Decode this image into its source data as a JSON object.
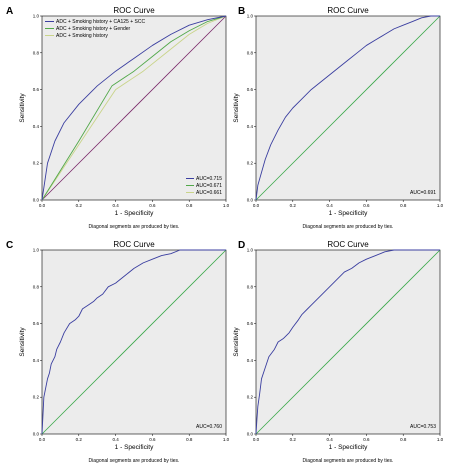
{
  "chart_data": [
    {
      "panel": "A",
      "type": "line",
      "title": "ROC Curve",
      "xlabel": "1 - Specificity",
      "ylabel": "Sensitivity",
      "xlim": [
        0,
        1
      ],
      "ylim": [
        0,
        1
      ],
      "x_ticks": [
        "0.0",
        "0.2",
        "0.4",
        "0.6",
        "0.8",
        "1.0"
      ],
      "y_ticks": [
        "0.0",
        "0.2",
        "0.4",
        "0.6",
        "0.8",
        "1.0"
      ],
      "note": "Diagonal segments are produced by ties.",
      "legend": [
        {
          "label": "ADC + Smoking history + CA125 + SCC",
          "color": "#3b3fa0"
        },
        {
          "label": "ADC + Smoking history + Gender",
          "color": "#52a84a"
        },
        {
          "label": "ADC + Smoking history",
          "color": "#c9d48a"
        }
      ],
      "auc_labels": [
        {
          "text": "AUC=0.715",
          "color": "#3b3fa0"
        },
        {
          "text": "AUC=0.671",
          "color": "#52a84a"
        },
        {
          "text": "AUC=0.661",
          "color": "#c9d48a"
        }
      ],
      "reference_color": "#7a2a6a",
      "series": [
        {
          "color": "#3b3fa0",
          "x": [
            0,
            0.03,
            0.07,
            0.12,
            0.2,
            0.3,
            0.4,
            0.5,
            0.6,
            0.7,
            0.8,
            0.9,
            1.0
          ],
          "y": [
            0,
            0.2,
            0.32,
            0.42,
            0.52,
            0.62,
            0.7,
            0.77,
            0.84,
            0.9,
            0.95,
            0.98,
            1.0
          ]
        },
        {
          "color": "#52a84a",
          "x": [
            0,
            0.2,
            0.38,
            0.5,
            0.6,
            0.7,
            0.8,
            0.9,
            1.0
          ],
          "y": [
            0,
            0.32,
            0.62,
            0.7,
            0.78,
            0.86,
            0.92,
            0.97,
            1.0
          ]
        },
        {
          "color": "#c9d48a",
          "x": [
            0,
            0.2,
            0.4,
            0.55,
            0.7,
            0.8,
            0.9,
            1.0
          ],
          "y": [
            0,
            0.3,
            0.6,
            0.7,
            0.82,
            0.9,
            0.96,
            1.0
          ]
        }
      ]
    },
    {
      "panel": "B",
      "type": "line",
      "title": "ROC Curve",
      "xlabel": "1 - Specificity",
      "ylabel": "Sensitivity",
      "xlim": [
        0,
        1
      ],
      "ylim": [
        0,
        1
      ],
      "x_ticks": [
        "0.0",
        "0.2",
        "0.4",
        "0.6",
        "0.8",
        "1.0"
      ],
      "y_ticks": [
        "0.0",
        "0.2",
        "0.4",
        "0.6",
        "0.8",
        "1.0"
      ],
      "note": "Diagonal segments are produced by ties.",
      "auc_labels": [
        {
          "text": "AUC=0.691",
          "color": "#000000"
        }
      ],
      "reference_color": "#3aa84a",
      "series": [
        {
          "color": "#3b3fa0",
          "x": [
            0,
            0.01,
            0.03,
            0.05,
            0.08,
            0.12,
            0.16,
            0.2,
            0.25,
            0.3,
            0.35,
            0.4,
            0.45,
            0.5,
            0.55,
            0.6,
            0.65,
            0.7,
            0.75,
            0.8,
            0.85,
            0.9,
            0.95,
            1.0
          ],
          "y": [
            0,
            0.08,
            0.15,
            0.22,
            0.3,
            0.38,
            0.45,
            0.5,
            0.55,
            0.6,
            0.64,
            0.68,
            0.72,
            0.76,
            0.8,
            0.84,
            0.87,
            0.9,
            0.93,
            0.95,
            0.97,
            0.99,
            1.0,
            1.0
          ]
        }
      ]
    },
    {
      "panel": "C",
      "type": "line",
      "title": "ROC Curve",
      "xlabel": "1 - Specificity",
      "ylabel": "Sensitivity",
      "xlim": [
        0,
        1
      ],
      "ylim": [
        0,
        1
      ],
      "x_ticks": [
        "0.0",
        "0.2",
        "0.4",
        "0.6",
        "0.8",
        "1.0"
      ],
      "y_ticks": [
        "0.0",
        "0.2",
        "0.4",
        "0.6",
        "0.8",
        "1.0"
      ],
      "note": "Diagonal segments are produced by ties.",
      "auc_labels": [
        {
          "text": "AUC=0.760",
          "color": "#000000"
        }
      ],
      "reference_color": "#3aa84a",
      "series": [
        {
          "color": "#3b3fa0",
          "x": [
            0,
            0.005,
            0.01,
            0.02,
            0.03,
            0.04,
            0.05,
            0.07,
            0.08,
            0.1,
            0.12,
            0.15,
            0.18,
            0.2,
            0.22,
            0.25,
            0.28,
            0.3,
            0.33,
            0.36,
            0.4,
            0.45,
            0.5,
            0.55,
            0.6,
            0.65,
            0.7,
            0.75,
            0.8,
            0.9,
            1.0
          ],
          "y": [
            0,
            0.1,
            0.2,
            0.25,
            0.3,
            0.33,
            0.38,
            0.42,
            0.46,
            0.5,
            0.55,
            0.6,
            0.62,
            0.64,
            0.68,
            0.7,
            0.72,
            0.74,
            0.76,
            0.8,
            0.82,
            0.86,
            0.9,
            0.93,
            0.95,
            0.97,
            0.98,
            1.0,
            1.0,
            1.0,
            1.0
          ]
        }
      ]
    },
    {
      "panel": "D",
      "type": "line",
      "title": "ROC Curve",
      "xlabel": "1 - Specificity",
      "ylabel": "Sensitivity",
      "xlim": [
        0,
        1
      ],
      "ylim": [
        0,
        1
      ],
      "x_ticks": [
        "0.0",
        "0.2",
        "0.4",
        "0.6",
        "0.8",
        "1.0"
      ],
      "y_ticks": [
        "0.0",
        "0.2",
        "0.4",
        "0.6",
        "0.8",
        "1.0"
      ],
      "note": "Diagonal segments are produced by ties.",
      "auc_labels": [
        {
          "text": "AUC=0.753",
          "color": "#000000"
        }
      ],
      "reference_color": "#3aa84a",
      "series": [
        {
          "color": "#3b3fa0",
          "x": [
            0,
            0.005,
            0.01,
            0.02,
            0.03,
            0.05,
            0.07,
            0.1,
            0.12,
            0.15,
            0.18,
            0.2,
            0.23,
            0.25,
            0.28,
            0.3,
            0.33,
            0.36,
            0.4,
            0.44,
            0.48,
            0.52,
            0.56,
            0.6,
            0.65,
            0.7,
            0.75,
            0.8,
            0.9,
            1.0
          ],
          "y": [
            0,
            0.08,
            0.15,
            0.22,
            0.3,
            0.36,
            0.42,
            0.46,
            0.5,
            0.52,
            0.55,
            0.58,
            0.62,
            0.65,
            0.68,
            0.7,
            0.73,
            0.76,
            0.8,
            0.84,
            0.88,
            0.9,
            0.93,
            0.95,
            0.97,
            0.99,
            1.0,
            1.0,
            1.0,
            1.0
          ]
        }
      ]
    }
  ]
}
